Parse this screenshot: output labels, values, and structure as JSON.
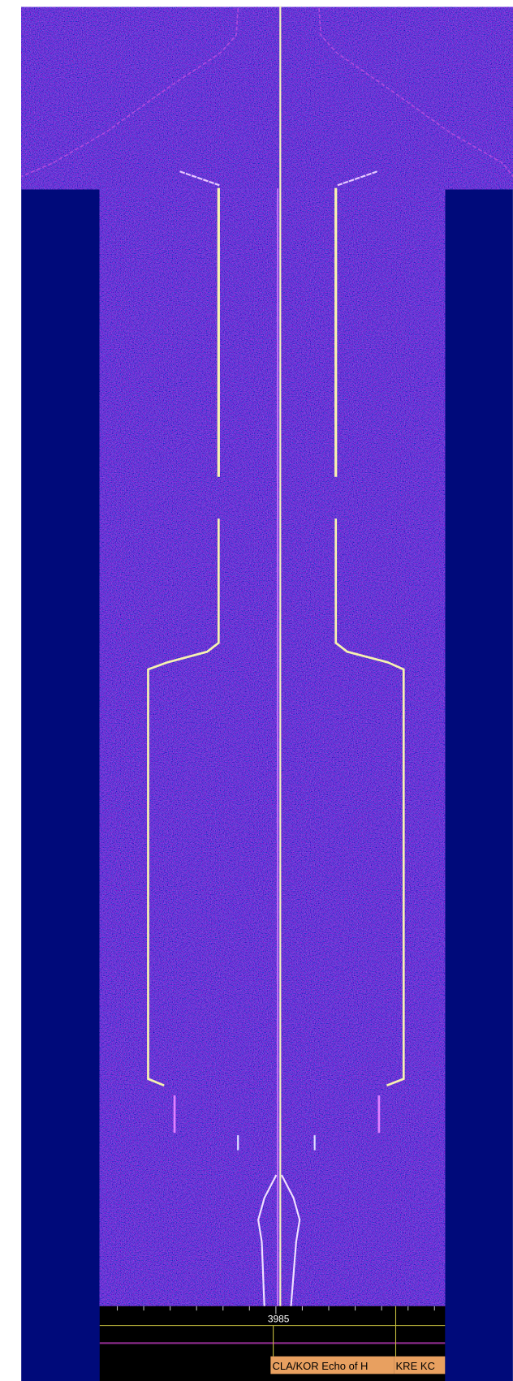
{
  "frequency_scale": {
    "labels": [
      "3985"
    ]
  },
  "station_labels": [
    "CLA/KOR Echo of H",
    "KRE KC"
  ]
}
